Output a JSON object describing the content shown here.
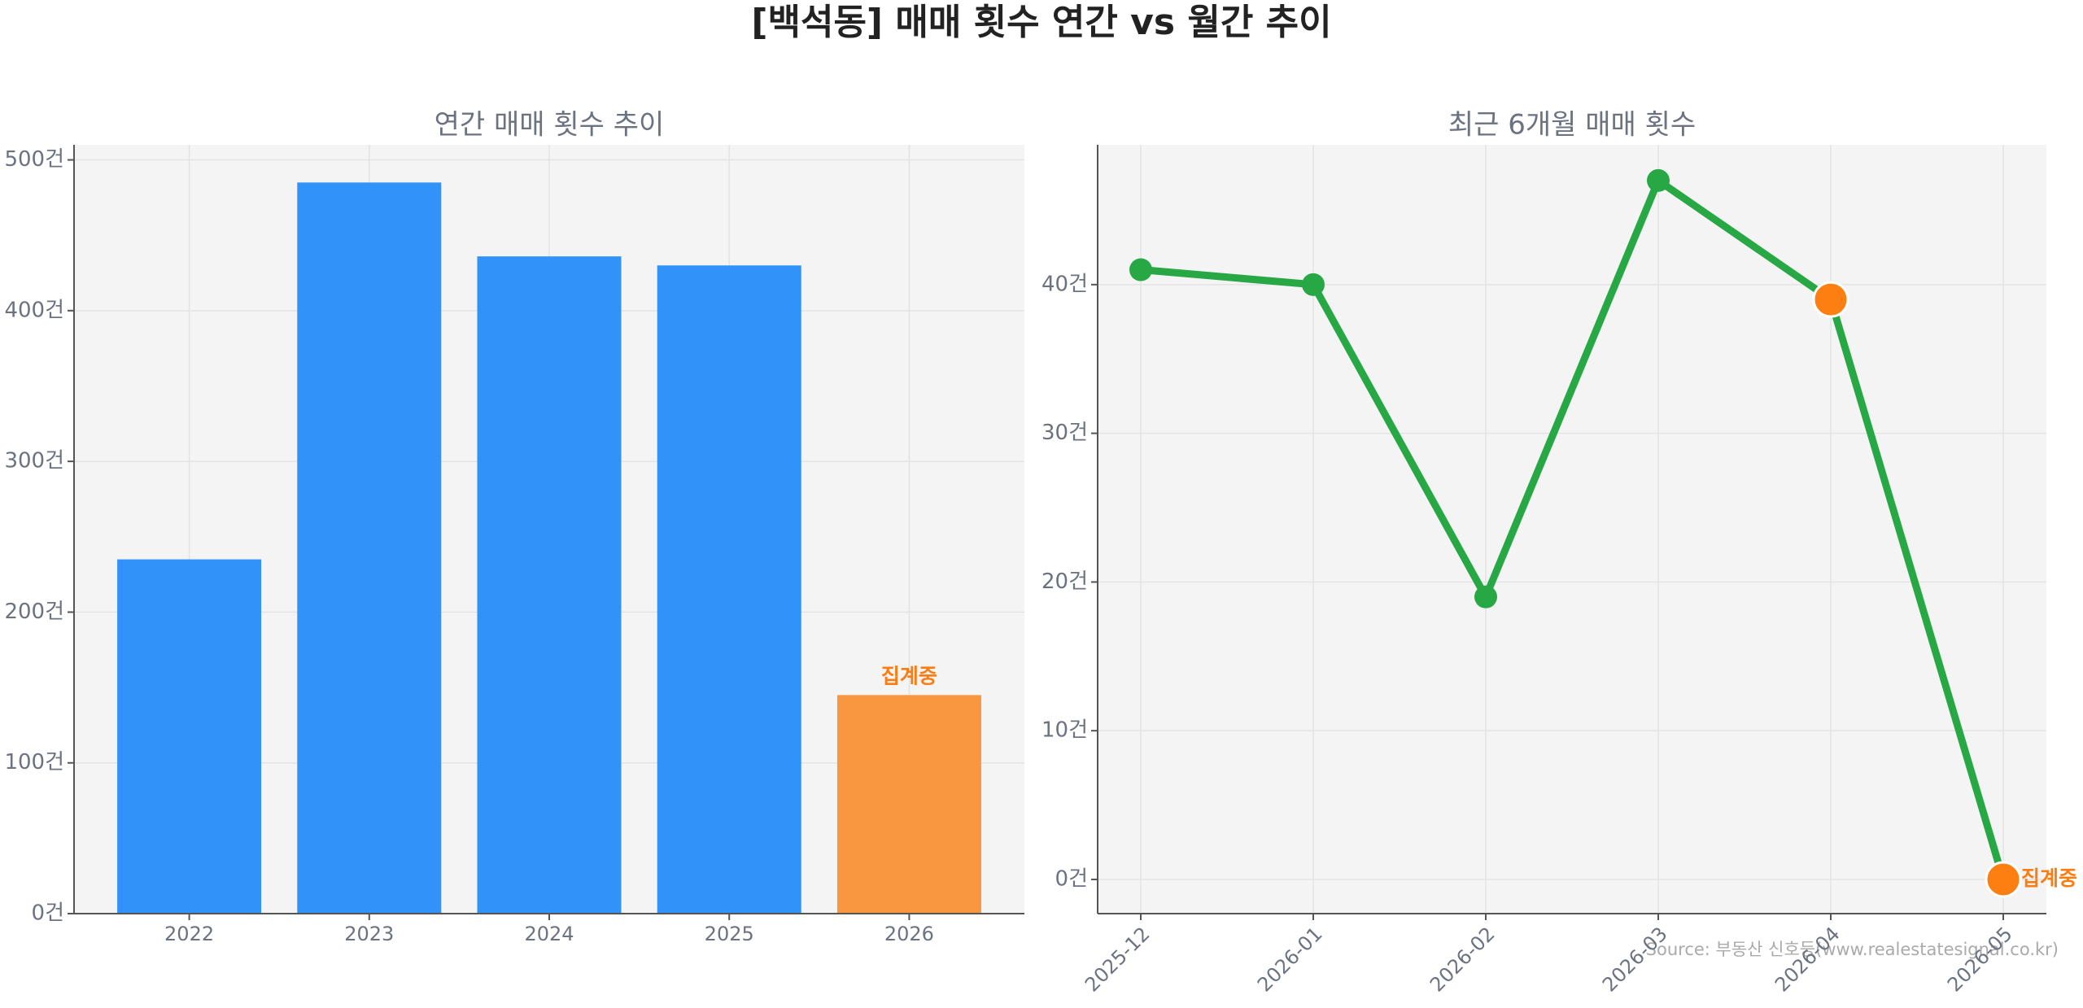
{
  "title": "[백석동] 매매 횟수 연간 vs 월간 추이",
  "source": "Source: 부동산 신호등(www.realestatesignal.co.kr)",
  "chart_data": [
    {
      "type": "bar",
      "title": "연간 매매 횟수 추이",
      "categories": [
        "2022",
        "2023",
        "2024",
        "2025",
        "2026"
      ],
      "values": [
        235,
        485,
        436,
        430,
        145
      ],
      "colors": [
        "#3192fa",
        "#3192fa",
        "#3192fa",
        "#3192fa",
        "#f99740"
      ],
      "annotations": [
        {
          "text": "집계중",
          "category": "2026",
          "color": "#f97d12"
        }
      ],
      "ylim": [
        0,
        510
      ],
      "yticks": [
        {
          "value": 0,
          "label": "0건"
        },
        {
          "value": 100,
          "label": "100건"
        },
        {
          "value": 200,
          "label": "200건"
        },
        {
          "value": 300,
          "label": "300건"
        },
        {
          "value": 400,
          "label": "400건"
        },
        {
          "value": 500,
          "label": "500건"
        }
      ],
      "grid": true
    },
    {
      "type": "line",
      "title": "최근 6개월 매매 횟수",
      "categories": [
        "2025-12",
        "2026-01",
        "2026-02",
        "2026-03",
        "2026-04",
        "2026-05"
      ],
      "series": [
        {
          "name": "매매 횟수",
          "color": "#28a745",
          "values": [
            41,
            40,
            19,
            47,
            39,
            0
          ],
          "marker_colors": [
            "#28a745",
            "#28a745",
            "#28a745",
            "#28a745",
            "#fd7f12",
            "#fd7f12"
          ]
        }
      ],
      "annotations": [
        {
          "text": "집계중",
          "category": "2026-05",
          "color": "#f97d12"
        }
      ],
      "ylim": [
        -2.3,
        49.4
      ],
      "yticks": [
        {
          "value": 0,
          "label": "0건"
        },
        {
          "value": 10,
          "label": "10건"
        },
        {
          "value": 20,
          "label": "20건"
        },
        {
          "value": 30,
          "label": "30건"
        },
        {
          "value": 40,
          "label": "40건"
        }
      ],
      "grid": true
    }
  ]
}
